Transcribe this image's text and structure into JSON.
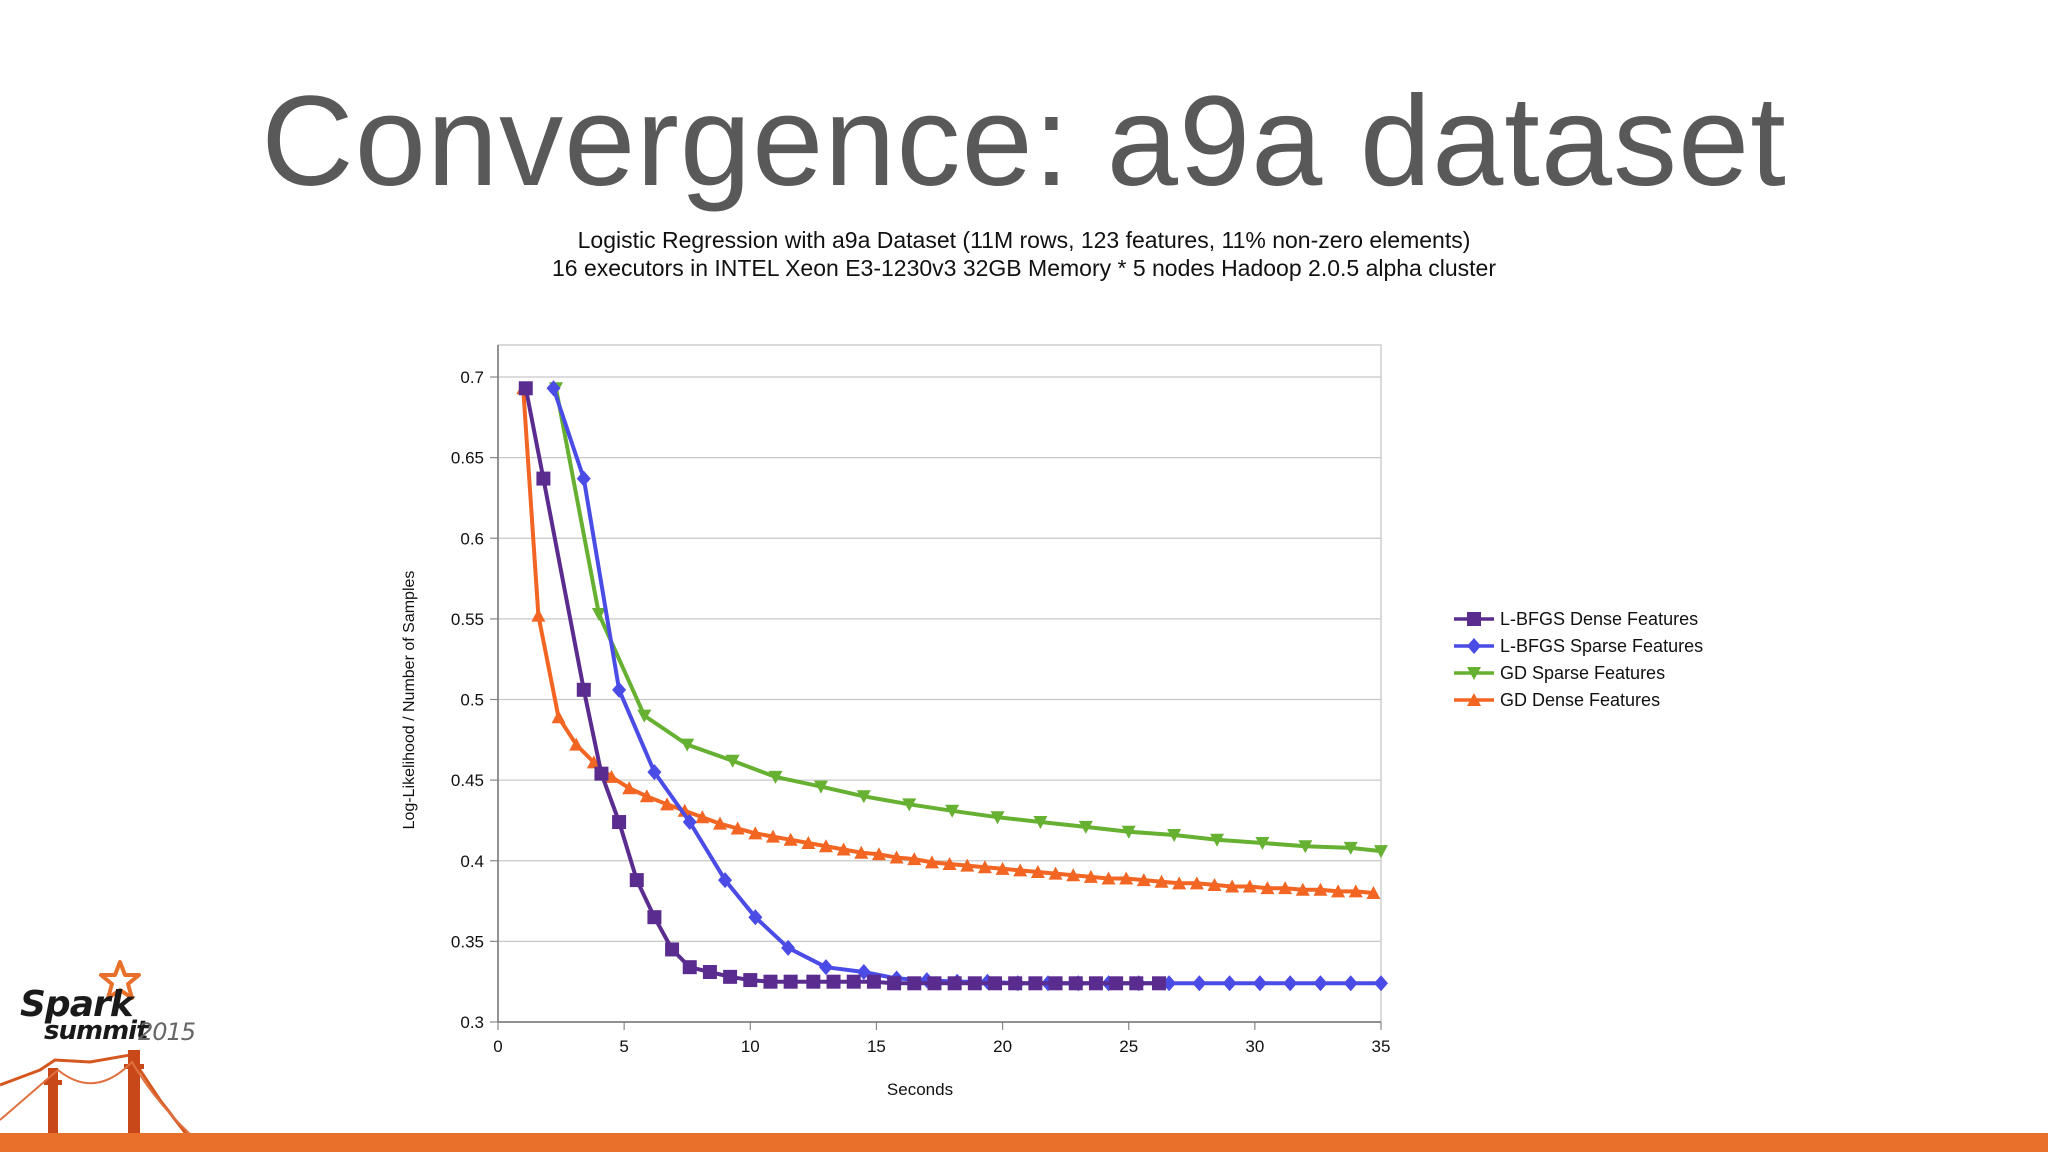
{
  "slide": {
    "title": "Convergence: a9a dataset",
    "accent_color": "#e8702a"
  },
  "logo": {
    "brand_top": "Spark",
    "brand_bottom": "summit",
    "year": "2015",
    "icon": "star-icon"
  },
  "chart_data": {
    "type": "line",
    "title": "Logistic Regression with a9a Dataset (11M rows, 123 features, 11% non-zero elements)",
    "subtitle": "16 executors in INTEL Xeon E3-1230v3 32GB Memory * 5 nodes Hadoop 2.0.5 alpha cluster",
    "xlabel": "Seconds",
    "ylabel": "Log-Likelihood / Number of Samples",
    "xlim": [
      0,
      35
    ],
    "ylim": [
      0.3,
      0.7
    ],
    "xticks": [
      0,
      5,
      10,
      15,
      20,
      25,
      30,
      35
    ],
    "yticks": [
      0.3,
      0.35,
      0.4,
      0.45,
      0.5,
      0.55,
      0.6,
      0.65,
      0.7
    ],
    "grid": "horizontal",
    "legend_position": "right",
    "series": [
      {
        "name": "L-BFGS Dense Features",
        "color": "#5b2c8f",
        "marker": "square",
        "x": [
          1.1,
          1.8,
          3.4,
          4.1,
          4.8,
          5.5,
          6.2,
          6.9,
          7.6,
          8.4,
          9.2,
          10.0,
          10.8,
          11.6,
          12.5,
          13.3,
          14.1,
          14.9,
          15.7,
          16.5,
          17.3,
          18.1,
          18.9,
          19.7,
          20.5,
          21.3,
          22.1,
          22.9,
          23.7,
          24.5,
          25.3,
          26.2
        ],
        "values": [
          0.693,
          0.637,
          0.506,
          0.454,
          0.424,
          0.388,
          0.365,
          0.345,
          0.334,
          0.331,
          0.328,
          0.326,
          0.325,
          0.325,
          0.325,
          0.325,
          0.325,
          0.325,
          0.324,
          0.324,
          0.324,
          0.324,
          0.324,
          0.324,
          0.324,
          0.324,
          0.324,
          0.324,
          0.324,
          0.324,
          0.324,
          0.324
        ]
      },
      {
        "name": "L-BFGS Sparse  Features",
        "color": "#4b4be6",
        "marker": "diamond",
        "x": [
          2.2,
          3.4,
          4.8,
          6.2,
          7.6,
          9.0,
          10.2,
          11.5,
          13.0,
          14.5,
          15.8,
          17.0,
          18.2,
          19.4,
          20.6,
          21.8,
          23.0,
          24.2,
          25.4,
          26.6,
          27.8,
          29.0,
          30.2,
          31.4,
          32.6,
          33.8,
          35.0
        ],
        "values": [
          0.693,
          0.637,
          0.506,
          0.455,
          0.424,
          0.388,
          0.365,
          0.346,
          0.334,
          0.331,
          0.327,
          0.326,
          0.325,
          0.325,
          0.324,
          0.324,
          0.324,
          0.324,
          0.324,
          0.324,
          0.324,
          0.324,
          0.324,
          0.324,
          0.324,
          0.324,
          0.324
        ]
      },
      {
        "name": "GD Sparse Features",
        "color": "#66b032",
        "marker": "triangle-down",
        "x": [
          2.3,
          4.0,
          5.8,
          7.5,
          9.3,
          11.0,
          12.8,
          14.5,
          16.3,
          18.0,
          19.8,
          21.5,
          23.3,
          25.0,
          26.8,
          28.5,
          30.3,
          32.0,
          33.8,
          35.0
        ],
        "values": [
          0.693,
          0.553,
          0.49,
          0.472,
          0.462,
          0.452,
          0.446,
          0.44,
          0.435,
          0.431,
          0.427,
          0.424,
          0.421,
          0.418,
          0.416,
          0.413,
          0.411,
          0.409,
          0.408,
          0.406
        ]
      },
      {
        "name": "GD Dense Features",
        "color": "#f26522",
        "marker": "triangle-up",
        "x": [
          1.0,
          1.6,
          2.4,
          3.1,
          3.8,
          4.5,
          5.2,
          5.9,
          6.7,
          7.4,
          8.1,
          8.8,
          9.5,
          10.2,
          10.9,
          11.6,
          12.3,
          13.0,
          13.7,
          14.4,
          15.1,
          15.8,
          16.5,
          17.2,
          17.9,
          18.6,
          19.3,
          20.0,
          20.7,
          21.4,
          22.1,
          22.8,
          23.5,
          24.2,
          24.9,
          25.6,
          26.3,
          27.0,
          27.7,
          28.4,
          29.1,
          29.8,
          30.5,
          31.2,
          31.9,
          32.6,
          33.3,
          34.0,
          34.7
        ],
        "values": [
          0.693,
          0.552,
          0.489,
          0.472,
          0.461,
          0.452,
          0.445,
          0.44,
          0.435,
          0.431,
          0.427,
          0.423,
          0.42,
          0.417,
          0.415,
          0.413,
          0.411,
          0.409,
          0.407,
          0.405,
          0.404,
          0.402,
          0.401,
          0.399,
          0.398,
          0.397,
          0.396,
          0.395,
          0.394,
          0.393,
          0.392,
          0.391,
          0.39,
          0.389,
          0.389,
          0.388,
          0.387,
          0.386,
          0.386,
          0.385,
          0.384,
          0.384,
          0.383,
          0.383,
          0.382,
          0.382,
          0.381,
          0.381,
          0.38
        ]
      }
    ]
  }
}
